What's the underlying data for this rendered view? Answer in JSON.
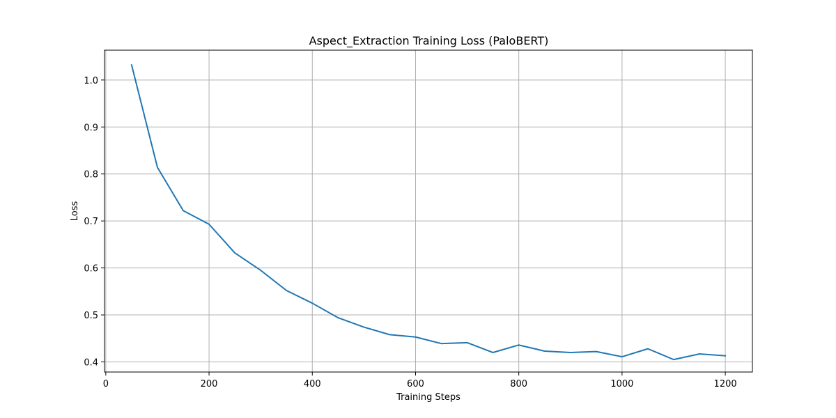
{
  "chart_data": {
    "type": "line",
    "title": "Aspect_Extraction Training Loss (PaloBERT)",
    "xlabel": "Training Steps",
    "ylabel": "Loss",
    "xlim": [
      -2.5,
      1252.5
    ],
    "ylim": [
      0.3785,
      1.0635
    ],
    "xticks": [
      0,
      200,
      400,
      600,
      800,
      1000,
      1200
    ],
    "yticks": [
      0.4,
      0.5,
      0.6,
      0.7,
      0.8,
      0.9,
      1.0
    ],
    "xtick_labels": [
      "0",
      "200",
      "400",
      "600",
      "800",
      "1000",
      "1200"
    ],
    "ytick_labels": [
      "0.4",
      "0.5",
      "0.6",
      "0.7",
      "0.8",
      "0.9",
      "1.0"
    ],
    "grid": true,
    "series": [
      {
        "color": "#1f77b4",
        "x": [
          50,
          100,
          150,
          200,
          250,
          300,
          350,
          400,
          450,
          500,
          550,
          600,
          650,
          700,
          750,
          800,
          850,
          900,
          950,
          1000,
          1050,
          1100,
          1150,
          1200
        ],
        "y": [
          1.032,
          0.814,
          0.722,
          0.693,
          0.632,
          0.595,
          0.552,
          0.525,
          0.494,
          0.474,
          0.458,
          0.453,
          0.439,
          0.441,
          0.42,
          0.436,
          0.423,
          0.42,
          0.422,
          0.411,
          0.428,
          0.405,
          0.417,
          0.413
        ]
      }
    ]
  }
}
